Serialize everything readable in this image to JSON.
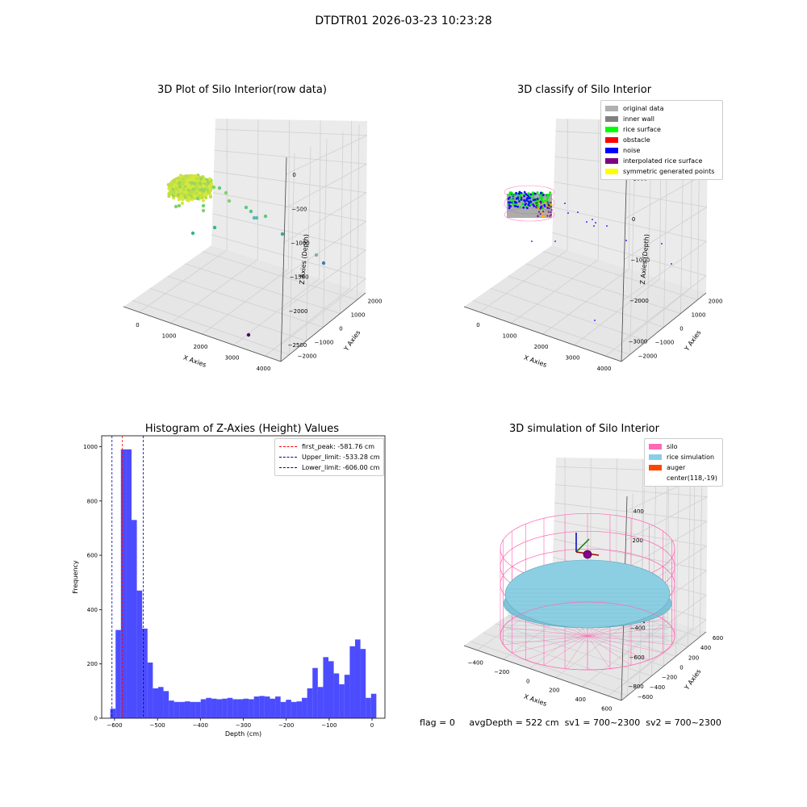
{
  "suptitle": "DTDTR01 2026-03-23 10:23:28",
  "panels": {
    "raw": {
      "title": "3D Plot of Silo Interior(row data)",
      "xlabel": "X Axies",
      "ylabel": "Y Axies",
      "zlabel": "Z Axies (Depth)",
      "xticks": [
        "0",
        "1000",
        "2000",
        "3000",
        "4000"
      ],
      "yticks": [
        "2000",
        "1000",
        "0",
        "−1000",
        "−2000"
      ],
      "zticks": [
        "0",
        "−500",
        "−1000",
        "−1500",
        "−2000",
        "−2500"
      ]
    },
    "classify": {
      "title": "3D classify of Silo Interior",
      "xlabel": "X Axies",
      "ylabel": "Y Axies",
      "zlabel": "Z Axies (Depth)",
      "xticks": [
        "0",
        "1000",
        "2000",
        "3000",
        "4000"
      ],
      "yticks": [
        "2000",
        "1000",
        "0",
        "−1000",
        "−2000"
      ],
      "zticks": [
        "1000",
        "0",
        "−1000",
        "−2000",
        "−3000"
      ],
      "legend": [
        {
          "label": "original data",
          "color": "#b0b0b0"
        },
        {
          "label": "inner wall",
          "color": "#808080"
        },
        {
          "label": "rice surface",
          "color": "#00ff00"
        },
        {
          "label": "obstacle",
          "color": "#ff0000"
        },
        {
          "label": "noise",
          "color": "#0000ff"
        },
        {
          "label": "interpolated rice surface",
          "color": "#800080"
        },
        {
          "label": "symmetric generated points",
          "color": "#ffff00"
        }
      ]
    },
    "simulation": {
      "title": "3D simulation of Silo Interior",
      "xlabel": "X Axies",
      "ylabel": "Y Axies",
      "zlabel": "Z Axies (Depth)",
      "xticks": [
        "−400",
        "−200",
        "0",
        "200",
        "400",
        "600"
      ],
      "yticks": [
        "600",
        "400",
        "200",
        "0",
        "−200",
        "−400",
        "−600"
      ],
      "zticks": [
        "400",
        "200",
        "0",
        "−200",
        "−400",
        "−600",
        "−800"
      ],
      "legend": [
        {
          "label": "silo",
          "color": "#ff69b4"
        },
        {
          "label": "rice simulation",
          "color": "#87ceeb"
        },
        {
          "label": "auger",
          "color": "#ff4500"
        },
        {
          "label": "center(118,-19)",
          "color": ""
        }
      ]
    }
  },
  "chart_data": {
    "type": "bar",
    "title": "Histogram of Z-Axies (Height) Values",
    "xlabel": "Depth (cm)",
    "ylabel": "Frequency",
    "xlim": [
      -630,
      30
    ],
    "ylim": [
      0,
      1040
    ],
    "xticks": [
      -600,
      -500,
      -400,
      -300,
      -200,
      -100,
      0
    ],
    "yticks": [
      0,
      200,
      400,
      600,
      800,
      1000
    ],
    "bar_color": "#0000ff",
    "bin_edges": [
      -610.0,
      -597.6,
      -585.2,
      -572.8,
      -560.4,
      -548.0,
      -535.6,
      -523.2,
      -510.8,
      -498.4,
      -486.0,
      -473.6,
      -461.2,
      -448.8,
      -436.4,
      -424.0,
      -411.6,
      -399.2,
      -386.8,
      -374.4,
      -362.0,
      -349.6,
      -337.2,
      -324.8,
      -312.4,
      -300.0,
      -287.6,
      -275.2,
      -262.8,
      -250.4,
      -238.0,
      -225.6,
      -213.2,
      -200.8,
      -188.4,
      -176.0,
      -163.6,
      -151.2,
      -138.8,
      -126.4,
      -114.0,
      -101.6,
      -89.2,
      -76.8,
      -64.4,
      -52.0,
      -39.6,
      -27.2,
      -14.8,
      -2.4
    ],
    "values": [
      35,
      325,
      990,
      990,
      730,
      470,
      330,
      205,
      110,
      115,
      100,
      65,
      60,
      60,
      62,
      60,
      60,
      70,
      75,
      72,
      70,
      72,
      75,
      70,
      70,
      72,
      70,
      80,
      82,
      80,
      72,
      80,
      60,
      68,
      60,
      62,
      75,
      110,
      185,
      115,
      225,
      210,
      165,
      125,
      160,
      265,
      290,
      255,
      75
    ],
    "last_value": 90,
    "lines": [
      {
        "label": "first_peak: -581.76 cm",
        "x": -581.76,
        "color": "#ff0000"
      },
      {
        "label": "Upper_limit: -533.28 cm",
        "x": -533.28,
        "color": "#0000aa"
      },
      {
        "label": "Lower_limit: -606.00 cm",
        "x": -606.0,
        "color": "#0000aa"
      }
    ],
    "legend_position": "top-right"
  },
  "footer": {
    "flag": "flag = 0",
    "avg": "avgDepth = 522 cm",
    "sv1": "sv1 = 700~2300",
    "sv2": "sv2 = 700~2300"
  }
}
